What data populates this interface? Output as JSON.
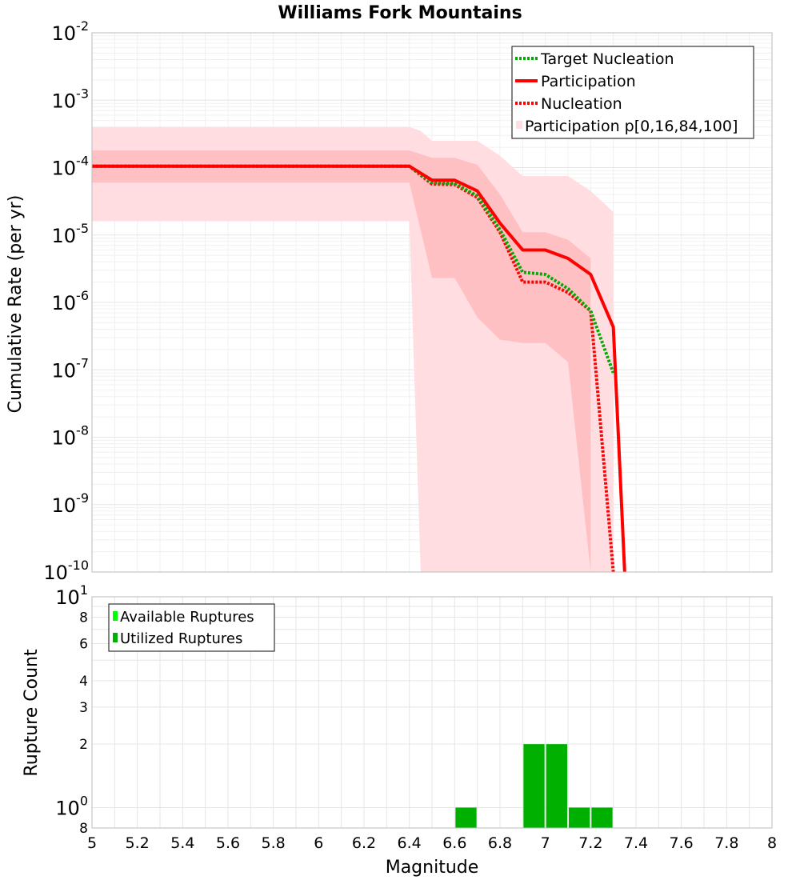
{
  "chart_data": [
    {
      "type": "line",
      "title": "Williams Fork Mountains",
      "ylabel": "Cumulative Rate (per yr)",
      "xlabel": "",
      "xlim": [
        5,
        8
      ],
      "ylim": [
        1e-10,
        0.01
      ],
      "yscale": "log",
      "legend_position": "top-right",
      "y_tick_labels": [
        {
          "base": "10",
          "exp": "-2"
        },
        {
          "base": "10",
          "exp": "-3"
        },
        {
          "base": "10",
          "exp": "-4"
        },
        {
          "base": "10",
          "exp": "-5"
        },
        {
          "base": "10",
          "exp": "-6"
        },
        {
          "base": "10",
          "exp": "-7"
        },
        {
          "base": "10",
          "exp": "-8"
        },
        {
          "base": "10",
          "exp": "-9"
        },
        {
          "base": "10",
          "exp": "-10"
        }
      ],
      "series": [
        {
          "name": "Target Nucleation",
          "color": "#00aa00",
          "style": "dotted",
          "x": [
            5.0,
            6.4,
            6.5,
            6.6,
            6.7,
            6.8,
            6.9,
            7.0,
            7.1,
            7.2,
            7.3
          ],
          "y": [
            0.000105,
            0.000105,
            6e-05,
            5.8e-05,
            3.8e-05,
            1.2e-05,
            2.8e-06,
            2.6e-06,
            1.6e-06,
            7.5e-07,
            9e-08
          ]
        },
        {
          "name": "Participation",
          "color": "#ff0000",
          "style": "solid",
          "x": [
            5.0,
            6.4,
            6.5,
            6.6,
            6.7,
            6.8,
            6.9,
            7.0,
            7.1,
            7.2,
            7.3,
            7.35
          ],
          "y": [
            0.000105,
            0.000105,
            6.5e-05,
            6.5e-05,
            4.5e-05,
            1.5e-05,
            6e-06,
            6e-06,
            4.5e-06,
            2.6e-06,
            4.3e-07,
            1e-10
          ]
        },
        {
          "name": "Nucleation",
          "color": "#ff0000",
          "style": "dotted",
          "x": [
            5.0,
            6.4,
            6.5,
            6.6,
            6.7,
            6.8,
            6.9,
            7.0,
            7.1,
            7.2,
            7.3
          ],
          "y": [
            0.000105,
            0.000105,
            5.7e-05,
            5.6e-05,
            3.6e-05,
            1.1e-05,
            2e-06,
            2e-06,
            1.4e-06,
            7.5e-07,
            1e-10
          ]
        }
      ],
      "bands": [
        {
          "name": "Participation p[0,16,84,100]",
          "color": "#ffdde0",
          "x": [
            5.0,
            6.4,
            6.45,
            6.5,
            6.6,
            6.7,
            6.8,
            6.9,
            7.0,
            7.1,
            7.15,
            7.2,
            7.25,
            7.3
          ],
          "upper": [
            0.0004,
            0.0004,
            0.00035,
            0.00025,
            0.00025,
            0.00025,
            0.00015,
            7.5e-05,
            7.5e-05,
            7.5e-05,
            null,
            4.5e-05,
            null,
            2.2e-05
          ],
          "lower": [
            1.6e-05,
            1.6e-05,
            1e-10,
            null,
            null,
            null,
            null,
            null,
            null,
            null,
            1e-10,
            null,
            null,
            null
          ]
        },
        {
          "name": "Participation p16-p84",
          "color": "#ffc0c3",
          "x": [
            5.0,
            6.4,
            6.5,
            6.6,
            6.7,
            6.8,
            6.9,
            7.0,
            7.1,
            7.2
          ],
          "upper": [
            0.00018,
            0.00018,
            0.00014,
            0.00014,
            0.00011,
            4e-05,
            1.1e-05,
            1.1e-05,
            8.5e-06,
            4.5e-06
          ],
          "lower": [
            6e-05,
            6e-05,
            2.3e-06,
            2.3e-06,
            6e-07,
            2.8e-07,
            2.5e-07,
            2.5e-07,
            1.3e-07,
            1e-10
          ]
        }
      ]
    },
    {
      "type": "bar",
      "title": "",
      "ylabel": "Rupture Count",
      "xlabel": "Magnitude",
      "xlim": [
        5,
        8
      ],
      "ylim": [
        0.8,
        10
      ],
      "yscale": "log",
      "legend_position": "top-left",
      "x_tick_labels": [
        "5",
        "5.2",
        "5.4",
        "5.6",
        "5.8",
        "6",
        "6.2",
        "6.4",
        "6.6",
        "6.8",
        "7",
        "7.2",
        "7.4",
        "7.6",
        "7.8",
        "8"
      ],
      "y_tick_labels": [
        {
          "value": 10,
          "base": "10",
          "exp": "1"
        },
        {
          "value": 8,
          "base": "8",
          "exp": ""
        },
        {
          "value": 6,
          "base": "6",
          "exp": ""
        },
        {
          "value": 4,
          "base": "4",
          "exp": ""
        },
        {
          "value": 3,
          "base": "3",
          "exp": ""
        },
        {
          "value": 2,
          "base": "2",
          "exp": ""
        },
        {
          "value": 1,
          "base": "10",
          "exp": "0"
        },
        {
          "value": 0.8,
          "base": "8",
          "exp": ""
        }
      ],
      "series": [
        {
          "name": "Available Ruptures",
          "color": "#00ff00",
          "bins": [],
          "values": []
        },
        {
          "name": "Utilized Ruptures",
          "color": "#00b000",
          "bins": [
            [
              6.6,
              6.7
            ],
            [
              6.9,
              7.0
            ],
            [
              7.0,
              7.1
            ],
            [
              7.1,
              7.2
            ],
            [
              7.2,
              7.3
            ]
          ],
          "values": [
            1,
            2,
            2,
            1,
            1
          ]
        }
      ]
    }
  ]
}
